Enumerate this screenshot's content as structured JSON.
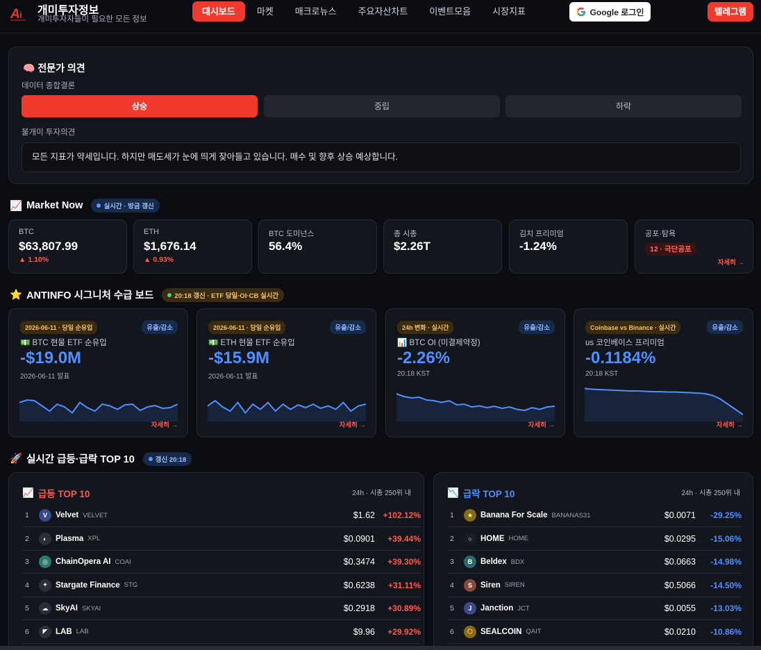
{
  "header": {
    "brand_title": "개미투자정보",
    "brand_sub": "개미투자자들이 필요한 모든 정보",
    "nav": [
      "대시보드",
      "마켓",
      "매크로뉴스",
      "주요자산차트",
      "이벤트모음",
      "시장지표"
    ],
    "google_login": "Google 로그인",
    "telegram": "텔레그램"
  },
  "expert": {
    "title": "전문가 의견",
    "sub": "데이터 종합결론",
    "up": "상승",
    "neutral": "중립",
    "down": "하락",
    "opinion_label": "불개미 투자의견",
    "opinion_text": "모든 지표가 약세입니다. 하지만 매도세가 눈에 띄게 잦아들고 있습니다. 매수 및 향후 상승 예상합니다."
  },
  "market": {
    "title": "Market Now",
    "badge": "실시간 · 방금 갱신",
    "cards": [
      {
        "label": "BTC",
        "value": "$63,807.99",
        "change": "1.10%"
      },
      {
        "label": "ETH",
        "value": "$1,676.14",
        "change": "0.93%"
      },
      {
        "label": "BTC 도미넌스",
        "value": "56.4%"
      },
      {
        "label": "총 시총",
        "value": "$2.26T"
      },
      {
        "label": "김치 프리미엄",
        "value": "-1.24%"
      },
      {
        "label": "공포·탐욕",
        "badge": "12 · 극단공포",
        "more": "자세히 →"
      }
    ]
  },
  "signature": {
    "title": "ANTINFO 시그니처 수급 보드",
    "badge": "20:18 갱신 · ETF 당일·OI·CB 실시간",
    "cards": [
      {
        "tag": "2026-06-11 · 당일 순유입",
        "io": "유출/감소",
        "icon": "💵",
        "name": "BTC 현물 ETF 순유입",
        "value": "-$19.0M",
        "date": "2026-06-11 발표",
        "more": "자세히 →",
        "series": [
          0.55,
          0.62,
          0.6,
          0.45,
          0.3,
          0.5,
          0.42,
          0.25,
          0.55,
          0.4,
          0.3,
          0.5,
          0.45,
          0.35,
          0.48,
          0.5,
          0.32,
          0.42,
          0.46,
          0.38,
          0.4,
          0.5
        ]
      },
      {
        "tag": "2026-06-11 · 당일 순유입",
        "io": "유출/감소",
        "icon": "💵",
        "name": "ETH 현물 ETF 순유입",
        "value": "-$15.9M",
        "date": "2026-06-11 발표",
        "more": "자세히 →",
        "series": [
          0.45,
          0.6,
          0.42,
          0.3,
          0.55,
          0.25,
          0.5,
          0.35,
          0.55,
          0.3,
          0.5,
          0.35,
          0.48,
          0.4,
          0.5,
          0.38,
          0.45,
          0.35,
          0.55,
          0.3,
          0.45,
          0.5
        ]
      },
      {
        "tag": "24h 변화 · 실시간",
        "io": "유출/감소",
        "icon": "📊",
        "name": "BTC OI (미결제약정)",
        "value": "-2.26%",
        "date": "20:18 KST",
        "more": "자세히 →",
        "series": [
          0.8,
          0.72,
          0.68,
          0.7,
          0.62,
          0.6,
          0.55,
          0.6,
          0.48,
          0.5,
          0.42,
          0.45,
          0.4,
          0.44,
          0.38,
          0.42,
          0.35,
          0.32,
          0.4,
          0.35,
          0.42,
          0.44
        ]
      },
      {
        "tag": "Coinbase vs Binance · 실시간",
        "io": "유출/감소",
        "icon": "us",
        "name": "코인베이스 프리미엄",
        "value": "-0.1184%",
        "date": "20:18 KST",
        "more": "자세히 →",
        "series": [
          0.95,
          0.93,
          0.92,
          0.91,
          0.9,
          0.89,
          0.88,
          0.88,
          0.87,
          0.86,
          0.86,
          0.85,
          0.85,
          0.84,
          0.83,
          0.82,
          0.8,
          0.75,
          0.65,
          0.5,
          0.35,
          0.2
        ]
      }
    ]
  },
  "top10": {
    "title": "실시간 급등·급락 TOP 10",
    "badge": "갱신 20:18",
    "gainers": {
      "title": "급등 TOP 10",
      "sub": "24h · 시총 250위 내",
      "rows": [
        {
          "rank": "1",
          "name": "Velvet",
          "sym": "VELVET",
          "price": "$1.62",
          "chg": "+102.12%",
          "logo": "V",
          "color": "#3a4a8a"
        },
        {
          "rank": "2",
          "name": "Plasma",
          "sym": "XPL",
          "price": "$0.0901",
          "chg": "+39.44%",
          "logo": "◐",
          "color": "#2b2f38"
        },
        {
          "rank": "3",
          "name": "ChainOpera AI",
          "sym": "COAI",
          "price": "$0.3474",
          "chg": "+39.30%",
          "logo": "◎",
          "color": "#2a7a70"
        },
        {
          "rank": "4",
          "name": "Stargate Finance",
          "sym": "STG",
          "price": "$0.6238",
          "chg": "+31.11%",
          "logo": "✦",
          "color": "#2b2f38"
        },
        {
          "rank": "5",
          "name": "SkyAI",
          "sym": "SKYAI",
          "price": "$0.2918",
          "chg": "+30.89%",
          "logo": "☁",
          "color": "#2b2f38"
        },
        {
          "rank": "6",
          "name": "LAB",
          "sym": "LAB",
          "price": "$9.96",
          "chg": "+29.92%",
          "logo": "◤",
          "color": "#2b2f38"
        }
      ]
    },
    "losers": {
      "title": "급락 TOP 10",
      "sub": "24h · 시총 250위 내",
      "rows": [
        {
          "rank": "1",
          "name": "Banana For Scale",
          "sym": "BANANAS31",
          "price": "$0.0071",
          "chg": "-29.25%",
          "logo": "★",
          "color": "#8a6a10"
        },
        {
          "rank": "2",
          "name": "HOME",
          "sym": "HOME",
          "price": "$0.0295",
          "chg": "-15.06%",
          "logo": "○",
          "color": "#1a1d24"
        },
        {
          "rank": "3",
          "name": "Beldex",
          "sym": "BDX",
          "price": "$0.0663",
          "chg": "-14.98%",
          "logo": "B",
          "color": "#2a6a70"
        },
        {
          "rank": "4",
          "name": "Siren",
          "sym": "SIREN",
          "price": "$0.5066",
          "chg": "-14.50%",
          "logo": "S",
          "color": "#8a4a3a"
        },
        {
          "rank": "5",
          "name": "Janction",
          "sym": "JCT",
          "price": "$0.0055",
          "chg": "-13.03%",
          "logo": "J",
          "color": "#3a4a8a"
        },
        {
          "rank": "6",
          "name": "SEALCOIN",
          "sym": "QAIT",
          "price": "$0.0210",
          "chg": "-10.86%",
          "logo": "⬡",
          "color": "#8a6a10"
        }
      ]
    }
  }
}
